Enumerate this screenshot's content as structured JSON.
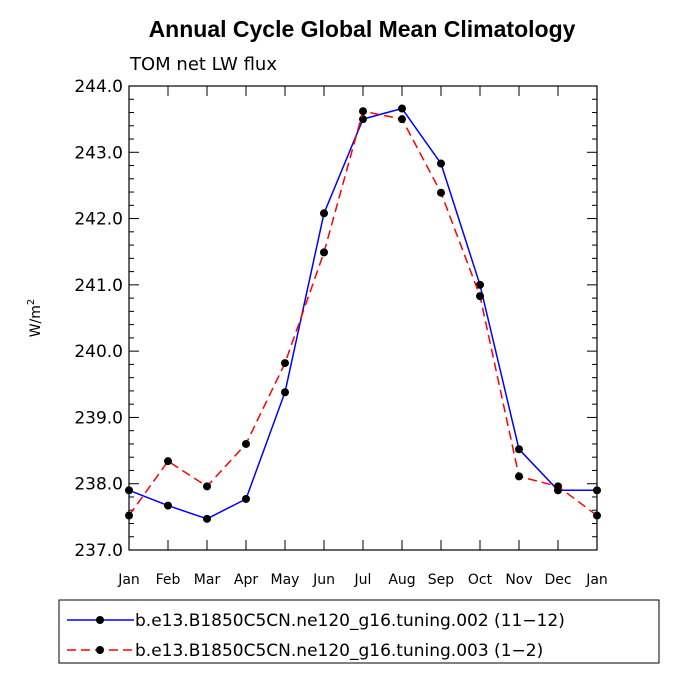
{
  "chart_data": {
    "type": "line",
    "title": "Annual Cycle Global Mean Climatology",
    "subtitle": "TOM net LW flux",
    "ylabel": "W/m",
    "ylabel_superscript": "2",
    "xlabel": "",
    "categories": [
      "Jan",
      "Feb",
      "Mar",
      "Apr",
      "May",
      "Jun",
      "Jul",
      "Aug",
      "Sep",
      "Oct",
      "Nov",
      "Dec",
      "Jan"
    ],
    "ylim": [
      237.0,
      244.0
    ],
    "yticks": [
      "237.0",
      "238.0",
      "239.0",
      "240.0",
      "241.0",
      "242.0",
      "243.0",
      "244.0"
    ],
    "series": [
      {
        "name": "b.e13.B1850C5CN.ne120_g16.tuning.002 (11−12)",
        "color": "#0000ff",
        "dash": "solid",
        "values": [
          237.9,
          237.67,
          237.47,
          237.77,
          239.38,
          242.08,
          243.5,
          243.66,
          242.83,
          241.0,
          238.52,
          237.9,
          237.9
        ]
      },
      {
        "name": "b.e13.B1850C5CN.ne120_g16.tuning.003 (1−2)",
        "color": "#ff0000",
        "dash": "dashed",
        "values": [
          237.52,
          238.34,
          237.96,
          238.6,
          239.82,
          241.49,
          243.62,
          243.5,
          242.39,
          240.83,
          238.11,
          237.96,
          237.52
        ]
      }
    ],
    "legend_position": "bottom"
  }
}
